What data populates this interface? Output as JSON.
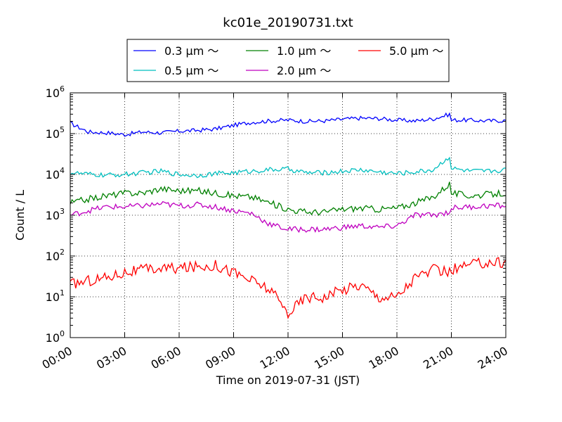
{
  "chart_data": {
    "type": "line",
    "title": "kc01e_20190731.txt",
    "xlabel": "Time on 2019-07-31 (JST)",
    "ylabel": "Count / L",
    "yscale": "log",
    "ylim": [
      1,
      1000000
    ],
    "xlim": [
      "2019-07-31 00:00",
      "2019-08-01 00:00"
    ],
    "x_tick_labels": [
      "00:00",
      "03:00",
      "06:00",
      "09:00",
      "12:00",
      "15:00",
      "18:00",
      "21:00",
      "24:00"
    ],
    "y_tick_labels": [
      {
        "base": "10",
        "exp": "0"
      },
      {
        "base": "10",
        "exp": "1"
      },
      {
        "base": "10",
        "exp": "2"
      },
      {
        "base": "10",
        "exp": "3"
      },
      {
        "base": "10",
        "exp": "4"
      },
      {
        "base": "10",
        "exp": "5"
      },
      {
        "base": "10",
        "exp": "6"
      }
    ],
    "grid": true,
    "legend": "top-center",
    "x_times": [
      "00:00",
      "01:00",
      "02:00",
      "03:00",
      "04:00",
      "05:00",
      "06:00",
      "07:00",
      "08:00",
      "09:00",
      "10:00",
      "11:00",
      "12:00",
      "13:00",
      "14:00",
      "15:00",
      "16:00",
      "17:00",
      "18:00",
      "19:00",
      "20:00",
      "20:55",
      "21:00",
      "22:00",
      "23:00",
      "24:00"
    ],
    "series": [
      {
        "name": "0.3 μm ～",
        "color": "#0000ff",
        "values": [
          180000,
          110000,
          105000,
          95000,
          110000,
          105000,
          115000,
          120000,
          130000,
          160000,
          190000,
          205000,
          215000,
          200000,
          205000,
          225000,
          240000,
          235000,
          215000,
          205000,
          230000,
          300000,
          215000,
          215000,
          205000,
          210000
        ]
      },
      {
        "name": "0.5 μm ～",
        "color": "#00bfbf",
        "values": [
          11000,
          10000,
          9500,
          10000,
          11000,
          12000,
          10000,
          9500,
          10500,
          11000,
          12000,
          13000,
          13500,
          11000,
          11000,
          12000,
          13000,
          11500,
          10500,
          11500,
          13000,
          28000,
          14000,
          12000,
          12000,
          13000
        ]
      },
      {
        "name": "1.0 μm ～",
        "color": "#008000",
        "values": [
          2000,
          2500,
          3000,
          3500,
          3500,
          4500,
          4000,
          4000,
          3500,
          3000,
          2800,
          2000,
          1400,
          1200,
          1200,
          1400,
          1500,
          1400,
          1500,
          2000,
          2800,
          6000,
          3500,
          3000,
          3200,
          3500
        ]
      },
      {
        "name": "2.0 μm ～",
        "color": "#bf00bf",
        "values": [
          1000,
          1300,
          1600,
          1600,
          1700,
          1900,
          1700,
          1800,
          1600,
          1300,
          1100,
          600,
          450,
          450,
          450,
          500,
          550,
          500,
          550,
          1000,
          1000,
          1200,
          1500,
          1600,
          1700,
          1700
        ]
      },
      {
        "name": "5.0 μm ～",
        "color": "#ff0000",
        "values": [
          20,
          25,
          30,
          40,
          45,
          50,
          50,
          55,
          60,
          40,
          25,
          15,
          4,
          10,
          10,
          15,
          20,
          10,
          10,
          30,
          45,
          40,
          45,
          60,
          70,
          70
        ]
      }
    ]
  }
}
